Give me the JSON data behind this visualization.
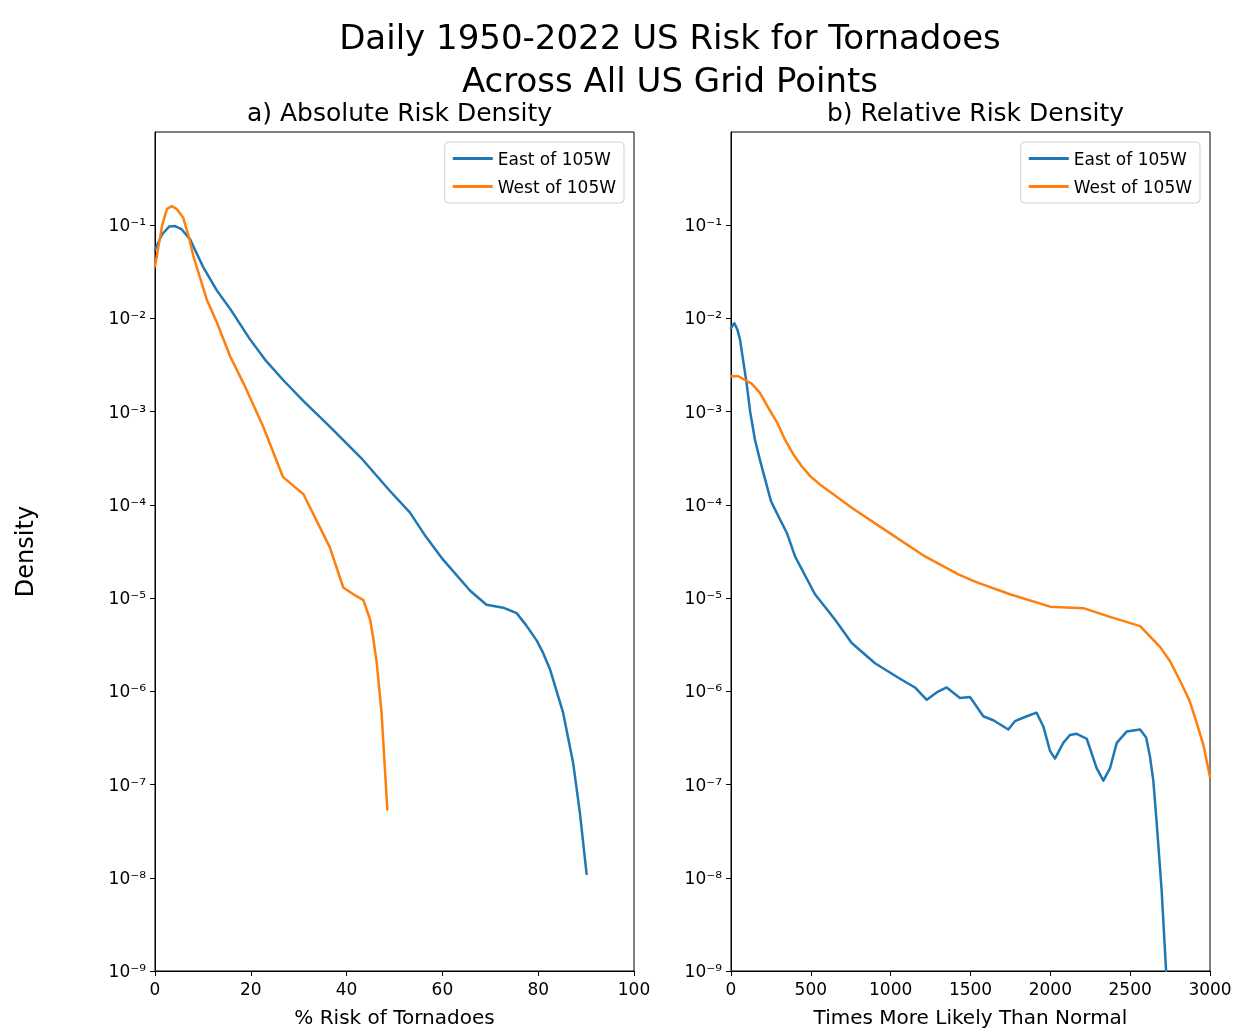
{
  "chart_data": [
    {
      "type": "line",
      "title": "Daily 1950-2022 US Risk for Tornadoes\nAcross All US Grid Points",
      "subtitle": "a) Absolute Risk Density",
      "xlabel": "% Risk of Tornadoes",
      "ylabel": "Density",
      "log": "y",
      "xlim": [
        0,
        100
      ],
      "xticks": [
        0,
        20,
        40,
        60,
        80,
        100
      ],
      "ylim": [
        1e-09,
        1
      ],
      "yticks": [
        {
          "value": 0.1,
          "label": "10⁻¹"
        },
        {
          "value": 0.01,
          "label": "10⁻²"
        },
        {
          "value": 0.001,
          "label": "10⁻³"
        },
        {
          "value": 0.0001,
          "label": "10⁻⁴"
        },
        {
          "value": 1e-05,
          "label": "10⁻⁵"
        },
        {
          "value": 1e-06,
          "label": "10⁻⁶"
        },
        {
          "value": 1e-07,
          "label": "10⁻⁷"
        },
        {
          "value": 1e-08,
          "label": "10⁻⁸"
        },
        {
          "value": 1e-09,
          "label": "10⁻⁹"
        }
      ],
      "legend": "top right",
      "series": [
        {
          "name": "East of 105W",
          "color": "#1f77b4",
          "x": [
            0,
            1.5,
            3,
            4.2,
            5.5,
            7.3,
            10,
            12.9,
            16,
            19.8,
            23,
            26.7,
            31,
            36.5,
            43,
            49.1,
            53.2,
            56.5,
            60.1,
            65.8,
            69.2,
            72.7,
            75.5,
            77.5,
            79.7,
            81,
            82.5,
            85.2,
            87.3,
            88.7,
            90.1
          ],
          "values": [
            0.055,
            0.08,
            0.097,
            0.098,
            0.091,
            0.071,
            0.036,
            0.02,
            0.012,
            0.006,
            0.0036,
            0.0022,
            0.0013,
            0.00069,
            0.00032,
            0.00014,
            8.3e-05,
            4.6e-05,
            2.6e-05,
            1.2e-05,
            8.5e-06,
            7.9e-06,
            6.9e-06,
            5.1e-06,
            3.5e-06,
            2.6e-06,
            1.7e-06,
            5.9e-07,
            1.7e-07,
            5e-08,
            1.1e-08
          ]
        },
        {
          "name": "West of 105W",
          "color": "#ff7f0e",
          "x": [
            0,
            1.5,
            2.5,
            3.5,
            4.5,
            5.9,
            7,
            8.0,
            10.8,
            12.9,
            15.7,
            18.5,
            22.6,
            26.7,
            28.9,
            31.0,
            36.5,
            39.3,
            41.4,
            43.5,
            44.9,
            45.5,
            46.3,
            47.3,
            48.5
          ],
          "values": [
            0.036,
            0.1,
            0.15,
            0.16,
            0.15,
            0.12,
            0.077,
            0.047,
            0.016,
            0.0091,
            0.0039,
            0.002,
            0.00069,
            0.0002,
            0.00016,
            0.00013,
            3.5e-05,
            1.3e-05,
            1.1e-05,
            9.5e-06,
            5.9e-06,
            3.9e-06,
            2e-06,
            5.9e-07,
            5.4e-08
          ]
        }
      ]
    },
    {
      "type": "line",
      "subtitle": "b) Relative Risk Density",
      "xlabel": "Times More Likely Than Normal",
      "log": "y",
      "xlim": [
        0,
        3000
      ],
      "xticks": [
        0,
        500,
        1000,
        1500,
        2000,
        2500,
        3000
      ],
      "ylim": [
        1e-09,
        1
      ],
      "yticks": [
        {
          "value": 0.1,
          "label": "10⁻¹"
        },
        {
          "value": 0.01,
          "label": "10⁻²"
        },
        {
          "value": 0.001,
          "label": "10⁻³"
        },
        {
          "value": 0.0001,
          "label": "10⁻⁴"
        },
        {
          "value": 1e-05,
          "label": "10⁻⁵"
        },
        {
          "value": 1e-06,
          "label": "10⁻⁶"
        },
        {
          "value": 1e-07,
          "label": "10⁻⁷"
        },
        {
          "value": 1e-08,
          "label": "10⁻⁸"
        },
        {
          "value": 1e-09,
          "label": "10⁻⁹"
        }
      ],
      "legend": "top right",
      "series": [
        {
          "name": "East of 105W",
          "color": "#1f77b4",
          "x": [
            0,
            21,
            40,
            56,
            98,
            120,
            150,
            180,
            213,
            250,
            296,
            350,
            401,
            526,
            651,
            756,
            902,
            1048,
            1152,
            1226,
            1290,
            1351,
            1434,
            1497,
            1580,
            1643,
            1737,
            1779,
            1853,
            1914,
            1956,
            1998,
            2029,
            2081,
            2123,
            2165,
            2228,
            2290,
            2332,
            2374,
            2416,
            2478,
            2562,
            2600,
            2624,
            2645,
            2666,
            2697,
            2725
          ],
          "values": [
            0.0079,
            0.0089,
            0.0076,
            0.006,
            0.002,
            0.001,
            0.0005,
            0.00031,
            0.00019,
            0.00011,
            7.6e-05,
            5e-05,
            2.8e-05,
            1.1e-05,
            5.9e-06,
            3.3e-06,
            2e-06,
            1.4e-06,
            1.1e-06,
            8.1e-07,
            9.8e-07,
            1.1e-06,
            8.5e-07,
            8.7e-07,
            5.4e-07,
            4.9e-07,
            3.9e-07,
            4.8e-07,
            5.4e-07,
            5.9e-07,
            4.2e-07,
            2.3e-07,
            1.9e-07,
            2.8e-07,
            3.4e-07,
            3.5e-07,
            3.1e-07,
            1.5e-07,
            1.1e-07,
            1.5e-07,
            2.8e-07,
            3.7e-07,
            3.9e-07,
            3.2e-07,
            2e-07,
            1.1e-07,
            3.9e-08,
            7.4e-09,
            1e-09
          ]
        },
        {
          "name": "West of 105W",
          "color": "#ff7f0e",
          "x": [
            0,
            46,
            129,
            180,
            234,
            290,
            338,
            390,
            443,
            500,
            568,
            756,
            964,
            1215,
            1424,
            1528,
            1747,
            1998,
            2207,
            2374,
            2562,
            2687,
            2750,
            2812,
            2870,
            2917,
            2960,
            3000
          ],
          "values": [
            0.0024,
            0.0024,
            0.002,
            0.0016,
            0.0011,
            0.00076,
            0.0005,
            0.00035,
            0.00026,
            0.0002,
            0.00016,
            9.3e-05,
            5.4e-05,
            2.8e-05,
            1.8e-05,
            1.5e-05,
            1.1e-05,
            8.1e-06,
            7.8e-06,
            6.3e-06,
            5e-06,
            3e-06,
            2.1e-06,
            1.3e-06,
            8.1e-07,
            4.6e-07,
            2.6e-07,
            1.2e-07
          ]
        }
      ]
    }
  ]
}
